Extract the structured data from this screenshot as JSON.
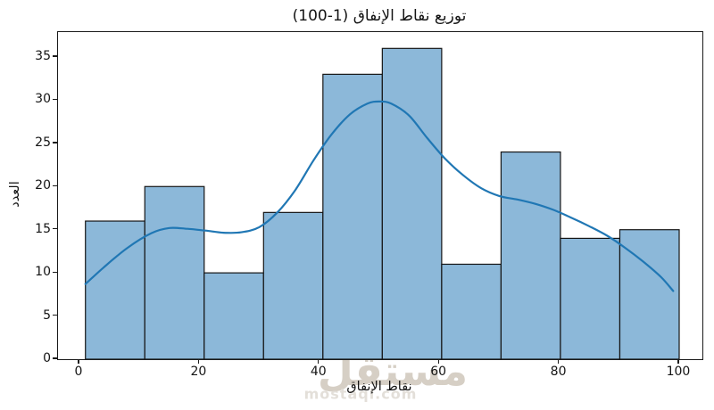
{
  "watermark": {
    "brand": "مستقل",
    "domain": "mostaql.com"
  },
  "chart_data": {
    "type": "bar",
    "subtype": "histogram_with_kde",
    "title": "توزيع نقاط الإنفاق (1-100)",
    "xlabel": "نقاط الإنفاق",
    "ylabel": "العدد",
    "bin_edges": [
      1,
      10.9,
      20.8,
      30.7,
      40.6,
      50.5,
      60.4,
      70.3,
      80.2,
      90.1,
      100
    ],
    "counts": [
      16,
      20,
      10,
      17,
      33,
      36,
      11,
      24,
      14,
      15
    ],
    "kde_points": [
      [
        1,
        8.7
      ],
      [
        4,
        10.6
      ],
      [
        8,
        12.9
      ],
      [
        12,
        14.6
      ],
      [
        15,
        15.2
      ],
      [
        18,
        15.1
      ],
      [
        21,
        14.9
      ],
      [
        24,
        14.65
      ],
      [
        27,
        14.7
      ],
      [
        30,
        15.3
      ],
      [
        33,
        17.0
      ],
      [
        36,
        19.6
      ],
      [
        39,
        23.0
      ],
      [
        42,
        26.0
      ],
      [
        45,
        28.3
      ],
      [
        48,
        29.6
      ],
      [
        50,
        29.85
      ],
      [
        52,
        29.6
      ],
      [
        55,
        28.2
      ],
      [
        58,
        25.6
      ],
      [
        61,
        23.2
      ],
      [
        64,
        21.3
      ],
      [
        67,
        19.8
      ],
      [
        70,
        18.9
      ],
      [
        73,
        18.5
      ],
      [
        76,
        18.0
      ],
      [
        79,
        17.3
      ],
      [
        82,
        16.4
      ],
      [
        85,
        15.4
      ],
      [
        88,
        14.3
      ],
      [
        91,
        12.9
      ],
      [
        94,
        11.3
      ],
      [
        97,
        9.5
      ],
      [
        99,
        7.9
      ]
    ],
    "x_ticks": [
      0,
      20,
      40,
      60,
      80,
      100
    ],
    "y_ticks": [
      0,
      5,
      10,
      15,
      20,
      25,
      30,
      35
    ],
    "xlim": [
      -3.57,
      103.87
    ],
    "ylim": [
      0,
      37.89
    ],
    "grid": false,
    "legend": "none",
    "colors": {
      "bar_fill": "#8cb8d9",
      "bar_edge": "#151515",
      "kde_line": "#2077b4",
      "spine": "#1a1a1a",
      "text": "#141414",
      "watermark_brand": "#d6cfc5",
      "watermark_domain": "#e3dfd9"
    }
  }
}
